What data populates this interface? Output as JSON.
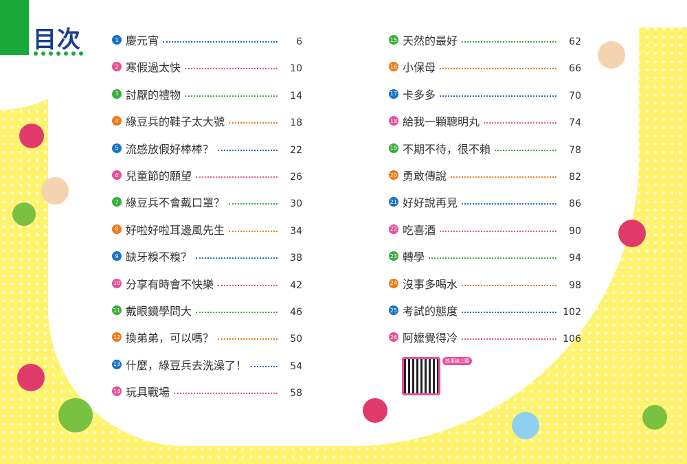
{
  "header": {
    "title": "目次"
  },
  "colors": {
    "blue": "#1a73c8",
    "pink": "#e8509a",
    "green": "#3aae3a",
    "orange": "#f07a1a",
    "brand_green": "#1aa83a",
    "title_navy": "#1b3d8f"
  },
  "toc": [
    {
      "num": "1",
      "title": "慶元宵",
      "page": "6",
      "color": "#1a73c8"
    },
    {
      "num": "2",
      "title": "寒假過太快",
      "page": "10",
      "color": "#e8509a"
    },
    {
      "num": "3",
      "title": "討厭的禮物",
      "page": "14",
      "color": "#3aae3a"
    },
    {
      "num": "4",
      "title": "綠豆兵的鞋子太大號",
      "page": "18",
      "color": "#f07a1a"
    },
    {
      "num": "5",
      "title": "流感放假好棒棒？",
      "page": "22",
      "color": "#1a73c8"
    },
    {
      "num": "6",
      "title": "兒童節的願望",
      "page": "26",
      "color": "#e8509a"
    },
    {
      "num": "7",
      "title": "綠豆兵不會戴口罩？",
      "page": "30",
      "color": "#3aae3a"
    },
    {
      "num": "8",
      "title": "好啦好啦耳邊風先生",
      "page": "34",
      "color": "#f07a1a"
    },
    {
      "num": "9",
      "title": "缺牙糗不糗？",
      "page": "38",
      "color": "#1a73c8"
    },
    {
      "num": "10",
      "title": "分享有時會不快樂",
      "page": "42",
      "color": "#e8509a"
    },
    {
      "num": "11",
      "title": "戴眼鏡學問大",
      "page": "46",
      "color": "#3aae3a"
    },
    {
      "num": "12",
      "title": "換弟弟，可以嗎？",
      "page": "50",
      "color": "#f07a1a"
    },
    {
      "num": "13",
      "title": "什麼，綠豆兵去洗澡了！",
      "page": "54",
      "color": "#1a73c8"
    },
    {
      "num": "14",
      "title": "玩具戰場",
      "page": "58",
      "color": "#e8509a"
    },
    {
      "num": "15",
      "title": "天然的最好",
      "page": "62",
      "color": "#3aae3a"
    },
    {
      "num": "16",
      "title": "小保母",
      "page": "66",
      "color": "#f07a1a"
    },
    {
      "num": "17",
      "title": "卡多多",
      "page": "70",
      "color": "#1a73c8"
    },
    {
      "num": "18",
      "title": "給我一顆聰明丸",
      "page": "74",
      "color": "#e8509a"
    },
    {
      "num": "19",
      "title": "不期不待，很不賴",
      "page": "78",
      "color": "#3aae3a"
    },
    {
      "num": "20",
      "title": "勇敢傳說",
      "page": "82",
      "color": "#f07a1a"
    },
    {
      "num": "21",
      "title": "好好說再見",
      "page": "86",
      "color": "#1a73c8"
    },
    {
      "num": "22",
      "title": "吃喜酒",
      "page": "90",
      "color": "#e8509a"
    },
    {
      "num": "23",
      "title": "轉學",
      "page": "94",
      "color": "#3aae3a"
    },
    {
      "num": "24",
      "title": "沒事多喝水",
      "page": "98",
      "color": "#f07a1a"
    },
    {
      "num": "25",
      "title": "考試的態度",
      "page": "102",
      "color": "#1a73c8"
    },
    {
      "num": "26",
      "title": "阿嬤覺得冷",
      "page": "106",
      "color": "#e8509a"
    }
  ],
  "qr": {
    "label": "故事線上聽"
  }
}
